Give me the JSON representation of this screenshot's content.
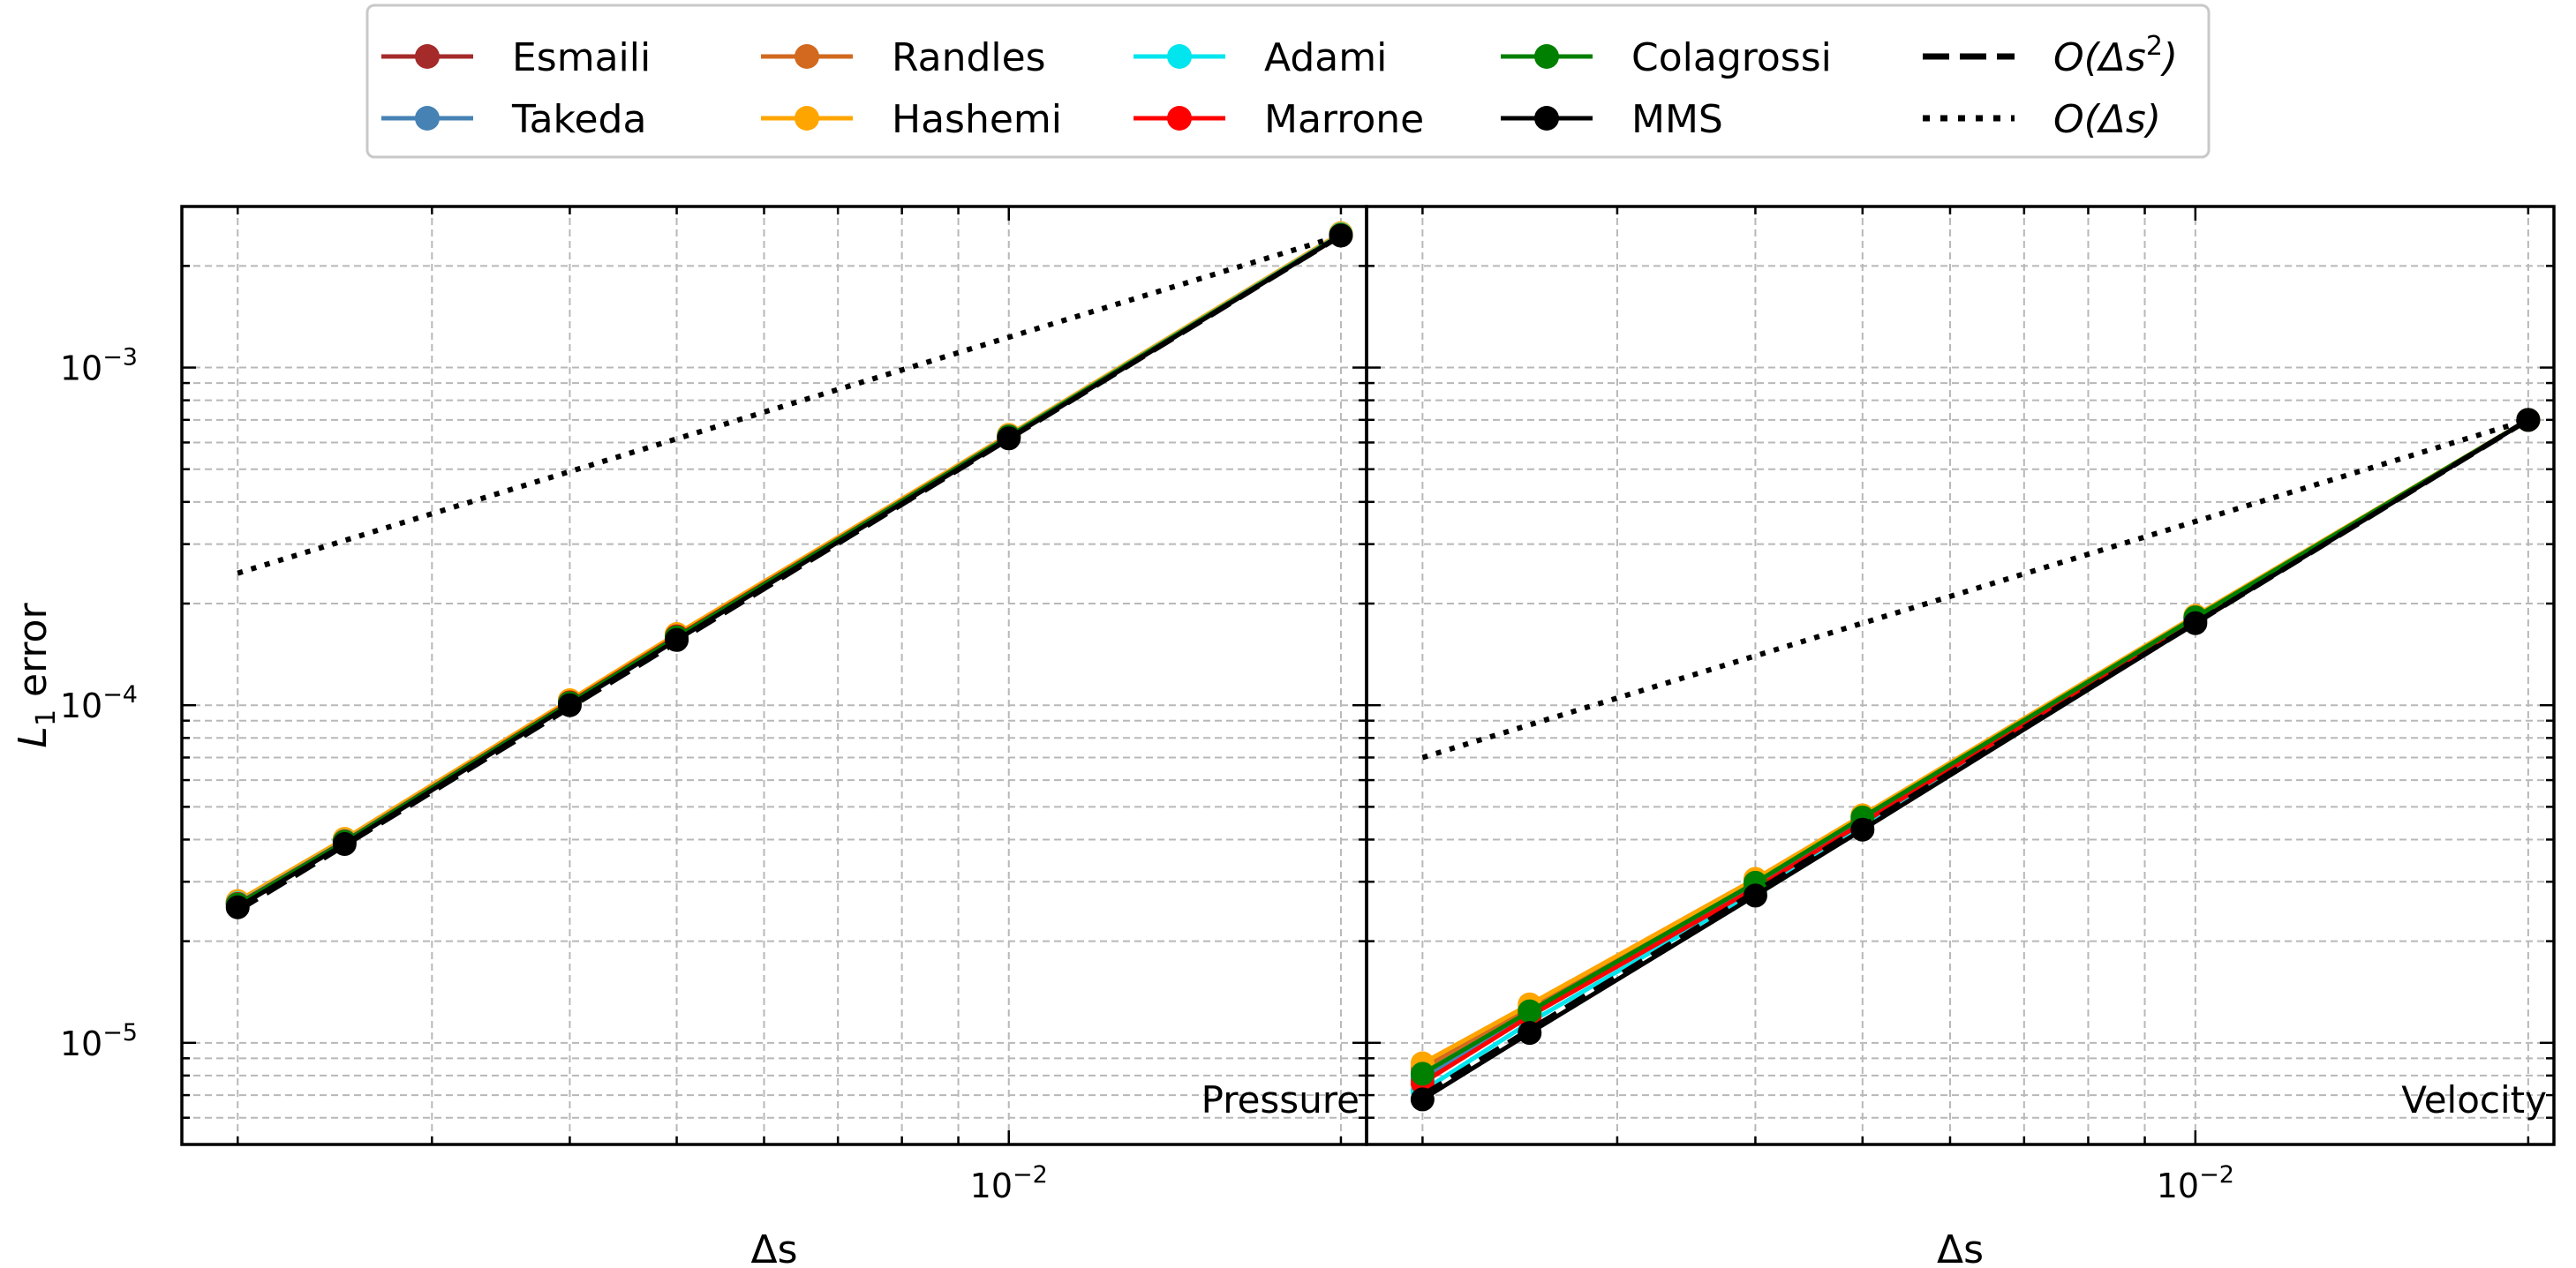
{
  "chart_data": [
    {
      "type": "line",
      "panel_label": "Pressure",
      "xscale": "log",
      "yscale": "log",
      "xlabel": "Δs",
      "ylabel": "L1 error",
      "xlim": [
        0.00178,
        0.0211
      ],
      "ylim": [
        5e-06,
        0.003
      ],
      "grid": true,
      "series": [
        {
          "name": "Esmaili",
          "color": "#a52a2a",
          "style": "solid",
          "marker": true,
          "x": [
            0.002,
            0.0025,
            0.004,
            0.005,
            0.01,
            0.02
          ],
          "y": [
            2.6e-05,
            3.98e-05,
            0.0001025,
            0.000161,
            0.000628,
            0.00248
          ]
        },
        {
          "name": "Takeda",
          "color": "#4682b4",
          "style": "solid",
          "marker": true,
          "x": [
            0.002,
            0.0025,
            0.004,
            0.005,
            0.01,
            0.02
          ],
          "y": [
            2.6e-05,
            3.98e-05,
            0.0001025,
            0.000161,
            0.000628,
            0.00248
          ]
        },
        {
          "name": "Randles",
          "color": "#d2691e",
          "style": "solid",
          "marker": true,
          "x": [
            0.002,
            0.0025,
            0.004,
            0.005,
            0.01,
            0.02
          ],
          "y": [
            2.62e-05,
            4e-05,
            0.000103,
            0.000162,
            0.00063,
            0.00249
          ]
        },
        {
          "name": "Hashemi",
          "color": "#ffa500",
          "style": "solid",
          "marker": true,
          "x": [
            0.002,
            0.0025,
            0.004,
            0.005,
            0.01,
            0.02
          ],
          "y": [
            2.63e-05,
            4.02e-05,
            0.0001035,
            0.0001625,
            0.000632,
            0.0025
          ]
        },
        {
          "name": "Adami",
          "color": "#00e5ee",
          "style": "solid",
          "marker": true,
          "x": [
            0.002,
            0.0025,
            0.004,
            0.005,
            0.01,
            0.02
          ],
          "y": [
            2.59e-05,
            3.96e-05,
            0.000102,
            0.00016,
            0.000626,
            0.00248
          ]
        },
        {
          "name": "Marrone",
          "color": "#ff0000",
          "style": "solid",
          "marker": true,
          "x": [
            0.002,
            0.0025,
            0.004,
            0.005,
            0.01,
            0.02
          ],
          "y": [
            2.58e-05,
            3.95e-05,
            0.000102,
            0.00016,
            0.000625,
            0.00247
          ]
        },
        {
          "name": "Colagrossi",
          "color": "#008000",
          "style": "solid",
          "marker": true,
          "x": [
            0.002,
            0.0025,
            0.004,
            0.005,
            0.01,
            0.02
          ],
          "y": [
            2.57e-05,
            3.94e-05,
            0.0001015,
            0.000159,
            0.000624,
            0.00247
          ]
        },
        {
          "name": "MMS",
          "color": "#000000",
          "style": "solid",
          "marker": true,
          "x": [
            0.002,
            0.0025,
            0.004,
            0.005,
            0.01,
            0.02
          ],
          "y": [
            2.52e-05,
            3.88e-05,
            0.0001,
            0.000156,
            0.000617,
            0.00246
          ]
        },
        {
          "name": "O(Δs²)",
          "color": "#000000",
          "style": "dashed",
          "marker": false,
          "x": [
            0.002,
            0.02
          ],
          "y": [
            2.46e-05,
            0.00246
          ]
        },
        {
          "name": "O(Δs)",
          "color": "#000000",
          "style": "dotted",
          "marker": false,
          "x": [
            0.002,
            0.02
          ],
          "y": [
            0.000246,
            0.00246
          ]
        }
      ]
    },
    {
      "type": "line",
      "panel_label": "Velocity",
      "xscale": "log",
      "yscale": "log",
      "xlabel": "Δs",
      "ylabel": "",
      "xlim": [
        0.00178,
        0.0211
      ],
      "ylim": [
        5e-06,
        0.003
      ],
      "grid": true,
      "series": [
        {
          "name": "Esmaili",
          "color": "#a52a2a",
          "style": "solid",
          "marker": true,
          "x": [
            0.002,
            0.0025,
            0.004,
            0.005,
            0.01,
            0.02
          ],
          "y": [
            7.8e-06,
            1.22e-05,
            2.92e-05,
            4.55e-05,
            0.00018,
            0.0007
          ]
        },
        {
          "name": "Takeda",
          "color": "#4682b4",
          "style": "solid",
          "marker": true,
          "x": [
            0.002,
            0.0025,
            0.004,
            0.005,
            0.01,
            0.02
          ],
          "y": [
            7.9e-06,
            1.23e-05,
            2.94e-05,
            4.58e-05,
            0.000181,
            0.0007
          ]
        },
        {
          "name": "Randles",
          "color": "#d2691e",
          "style": "solid",
          "marker": true,
          "x": [
            0.002,
            0.0025,
            0.004,
            0.005,
            0.01,
            0.02
          ],
          "y": [
            8.4e-06,
            1.28e-05,
            3.03e-05,
            4.68e-05,
            0.000183,
            0.0007
          ]
        },
        {
          "name": "Hashemi",
          "color": "#ffa500",
          "style": "solid",
          "marker": true,
          "x": [
            0.002,
            0.0025,
            0.004,
            0.005,
            0.01,
            0.02
          ],
          "y": [
            8.7e-06,
            1.3e-05,
            3.06e-05,
            4.72e-05,
            0.000184,
            0.0007
          ]
        },
        {
          "name": "Adami",
          "color": "#00e5ee",
          "style": "solid",
          "marker": true,
          "x": [
            0.002,
            0.0025,
            0.004,
            0.005,
            0.01,
            0.02
          ],
          "y": [
            7.2e-06,
            1.15e-05,
            2.8e-05,
            4.42e-05,
            0.000178,
            0.0007
          ]
        },
        {
          "name": "Marrone",
          "color": "#ff0000",
          "style": "solid",
          "marker": true,
          "x": [
            0.002,
            0.0025,
            0.004,
            0.005,
            0.01,
            0.02
          ],
          "y": [
            7.6e-06,
            1.2e-05,
            2.87e-05,
            4.48e-05,
            0.000179,
            0.0007
          ]
        },
        {
          "name": "Colagrossi",
          "color": "#008000",
          "style": "solid",
          "marker": true,
          "x": [
            0.002,
            0.0025,
            0.004,
            0.005,
            0.01,
            0.02
          ],
          "y": [
            8.1e-06,
            1.24e-05,
            2.98e-05,
            4.65e-05,
            0.000182,
            0.0007
          ]
        },
        {
          "name": "MMS",
          "color": "#000000",
          "style": "solid",
          "marker": true,
          "x": [
            0.002,
            0.0025,
            0.004,
            0.005,
            0.01,
            0.02
          ],
          "y": [
            6.8e-06,
            1.07e-05,
            2.73e-05,
            4.28e-05,
            0.000175,
            0.0007
          ]
        },
        {
          "name": "O(Δs²)",
          "color": "#000000",
          "style": "dashed",
          "marker": false,
          "x": [
            0.002,
            0.02
          ],
          "y": [
            7e-06,
            0.0007
          ]
        },
        {
          "name": "O(Δs)",
          "color": "#000000",
          "style": "dotted",
          "marker": false,
          "x": [
            0.002,
            0.02
          ],
          "y": [
            7e-05,
            0.0007
          ]
        }
      ]
    }
  ],
  "axes": {
    "y_major_ticks": [
      {
        "value": 0.001,
        "base": "10",
        "exp": "−3"
      },
      {
        "value": 0.0001,
        "base": "10",
        "exp": "−4"
      },
      {
        "value": 1e-05,
        "base": "10",
        "exp": "−5"
      }
    ],
    "x_major_ticks": [
      {
        "value": 0.01,
        "base": "10",
        "exp": "−2"
      }
    ],
    "ylabel_main": "L",
    "ylabel_sub": "1",
    "ylabel_rest": " error"
  },
  "legend": {
    "items": [
      {
        "label": "Esmaili",
        "color": "#a52a2a",
        "style": "solid",
        "marker": true
      },
      {
        "label": "Takeda",
        "color": "#4682b4",
        "style": "solid",
        "marker": true
      },
      {
        "label": "Randles",
        "color": "#d2691e",
        "style": "solid",
        "marker": true
      },
      {
        "label": "Hashemi",
        "color": "#ffa500",
        "style": "solid",
        "marker": true
      },
      {
        "label": "Adami",
        "color": "#00e5ee",
        "style": "solid",
        "marker": true
      },
      {
        "label": "Marrone",
        "color": "#ff0000",
        "style": "solid",
        "marker": true
      },
      {
        "label": "Colagrossi",
        "color": "#008000",
        "style": "solid",
        "marker": true
      },
      {
        "label": "MMS",
        "color": "#000000",
        "style": "solid",
        "marker": true
      },
      {
        "label": "O(Δs²)",
        "color": "#000000",
        "style": "dashed",
        "marker": false,
        "math": true,
        "base": "O(Δs",
        "sup": "2",
        "tail": ")"
      },
      {
        "label": "O(Δs)",
        "color": "#000000",
        "style": "dotted",
        "marker": false,
        "math": true,
        "base": "O(Δs",
        "sup": "",
        "tail": ")"
      }
    ]
  }
}
